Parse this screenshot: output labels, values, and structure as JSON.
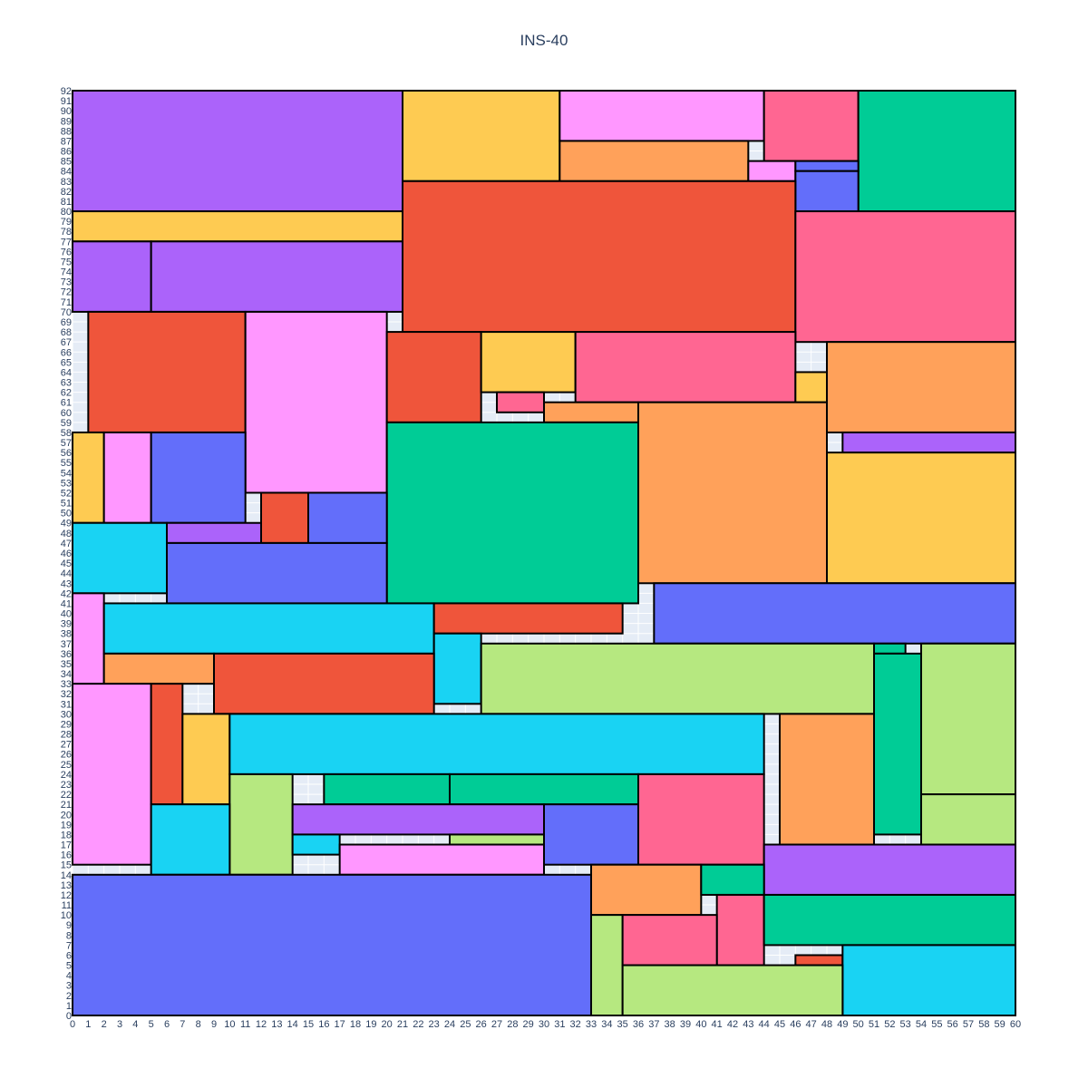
{
  "chart_data": {
    "type": "rectangle-packing",
    "title": "INS-40",
    "xlabel": "",
    "ylabel": "",
    "xlim": [
      0,
      60
    ],
    "ylim": [
      0,
      92
    ],
    "x_ticks": [
      0,
      1,
      2,
      3,
      4,
      5,
      6,
      7,
      8,
      9,
      10,
      11,
      12,
      13,
      14,
      15,
      16,
      17,
      18,
      19,
      20,
      21,
      22,
      23,
      24,
      25,
      26,
      27,
      28,
      29,
      30,
      31,
      32,
      33,
      34,
      35,
      36,
      37,
      38,
      39,
      40,
      41,
      42,
      43,
      44,
      45,
      46,
      47,
      48,
      49,
      50,
      51,
      52,
      53,
      54,
      55,
      56,
      57,
      58,
      59,
      60
    ],
    "y_ticks": [
      0,
      1,
      2,
      3,
      4,
      5,
      6,
      7,
      8,
      9,
      10,
      11,
      12,
      13,
      14,
      15,
      16,
      17,
      18,
      19,
      20,
      21,
      22,
      23,
      24,
      25,
      26,
      27,
      28,
      29,
      30,
      31,
      32,
      33,
      34,
      35,
      36,
      37,
      38,
      39,
      40,
      41,
      42,
      43,
      44,
      45,
      46,
      47,
      48,
      49,
      50,
      51,
      52,
      53,
      54,
      55,
      56,
      57,
      58,
      59,
      60,
      61,
      62,
      63,
      64,
      65,
      66,
      67,
      68,
      69,
      70,
      71,
      72,
      73,
      74,
      75,
      76,
      77,
      78,
      79,
      80,
      81,
      82,
      83,
      84,
      85,
      86,
      87,
      88,
      89,
      90,
      91,
      92
    ],
    "grid": true,
    "background": "#e5ecf6",
    "colors": {
      "purple": "#ab63fa",
      "yellow": "#fecb52",
      "pink": "#ff97ff",
      "orange": "#ffa15a",
      "rose": "#ff6692",
      "green": "#00cc96",
      "blue": "#636efa",
      "red": "#ef553b",
      "cyan": "#19d3f3",
      "lime": "#b6e880"
    },
    "rectangles": [
      {
        "x0": 0,
        "x1": 21,
        "y0": 80,
        "y1": 92,
        "color": "#ab63fa"
      },
      {
        "x0": 21,
        "x1": 31,
        "y0": 83,
        "y1": 92,
        "color": "#fecb52"
      },
      {
        "x0": 31,
        "x1": 44,
        "y0": 87,
        "y1": 92,
        "color": "#ff97ff"
      },
      {
        "x0": 44,
        "x1": 50,
        "y0": 85,
        "y1": 92,
        "color": "#ff6692"
      },
      {
        "x0": 50,
        "x1": 60,
        "y0": 80,
        "y1": 92,
        "color": "#00cc96"
      },
      {
        "x0": 31,
        "x1": 43,
        "y0": 83,
        "y1": 87,
        "color": "#ffa15a"
      },
      {
        "x0": 43,
        "x1": 46,
        "y0": 83,
        "y1": 85,
        "color": "#ff97ff"
      },
      {
        "x0": 46,
        "x1": 50,
        "y0": 84,
        "y1": 85,
        "color": "#636efa"
      },
      {
        "x0": 46,
        "x1": 50,
        "y0": 80,
        "y1": 84,
        "color": "#636efa"
      },
      {
        "x0": 0,
        "x1": 21,
        "y0": 77,
        "y1": 80,
        "color": "#fecb52"
      },
      {
        "x0": 21,
        "x1": 46,
        "y0": 68,
        "y1": 83,
        "color": "#ef553b"
      },
      {
        "x0": 46,
        "x1": 60,
        "y0": 67,
        "y1": 80,
        "color": "#ff6692"
      },
      {
        "x0": 0,
        "x1": 5,
        "y0": 70,
        "y1": 77,
        "color": "#ab63fa"
      },
      {
        "x0": 5,
        "x1": 21,
        "y0": 70,
        "y1": 77,
        "color": "#ab63fa"
      },
      {
        "x0": 1,
        "x1": 11,
        "y0": 58,
        "y1": 70,
        "color": "#ef553b"
      },
      {
        "x0": 11,
        "x1": 20,
        "y0": 52,
        "y1": 70,
        "color": "#ff97ff"
      },
      {
        "x0": 20,
        "x1": 26,
        "y0": 59,
        "y1": 68,
        "color": "#ef553b"
      },
      {
        "x0": 26,
        "x1": 32,
        "y0": 62,
        "y1": 68,
        "color": "#fecb52"
      },
      {
        "x0": 32,
        "x1": 46,
        "y0": 61,
        "y1": 68,
        "color": "#ff6692"
      },
      {
        "x0": 27,
        "x1": 30,
        "y0": 60,
        "y1": 62,
        "color": "#ff6692"
      },
      {
        "x0": 46,
        "x1": 48,
        "y0": 61,
        "y1": 64,
        "color": "#fecb52"
      },
      {
        "x0": 48,
        "x1": 60,
        "y0": 58,
        "y1": 67,
        "color": "#ffa15a"
      },
      {
        "x0": 30,
        "x1": 36,
        "y0": 59,
        "y1": 61,
        "color": "#ffa15a"
      },
      {
        "x0": 20,
        "x1": 36,
        "y0": 41,
        "y1": 59,
        "color": "#00cc96"
      },
      {
        "x0": 36,
        "x1": 48,
        "y0": 43,
        "y1": 61,
        "color": "#ffa15a"
      },
      {
        "x0": 49,
        "x1": 60,
        "y0": 56,
        "y1": 58,
        "color": "#ab63fa"
      },
      {
        "x0": 48,
        "x1": 60,
        "y0": 43,
        "y1": 56,
        "color": "#fecb52"
      },
      {
        "x0": 0,
        "x1": 2,
        "y0": 49,
        "y1": 58,
        "color": "#fecb52"
      },
      {
        "x0": 2,
        "x1": 5,
        "y0": 49,
        "y1": 58,
        "color": "#ff97ff"
      },
      {
        "x0": 5,
        "x1": 11,
        "y0": 49,
        "y1": 58,
        "color": "#636efa"
      },
      {
        "x0": 12,
        "x1": 15,
        "y0": 47,
        "y1": 52,
        "color": "#ef553b"
      },
      {
        "x0": 15,
        "x1": 20,
        "y0": 47,
        "y1": 52,
        "color": "#636efa"
      },
      {
        "x0": 0,
        "x1": 6,
        "y0": 42,
        "y1": 49,
        "color": "#19d3f3"
      },
      {
        "x0": 6,
        "x1": 12,
        "y0": 47,
        "y1": 49,
        "color": "#ab63fa"
      },
      {
        "x0": 6,
        "x1": 20,
        "y0": 41,
        "y1": 47,
        "color": "#636efa"
      },
      {
        "x0": 37,
        "x1": 60,
        "y0": 37,
        "y1": 43,
        "color": "#636efa"
      },
      {
        "x0": 0,
        "x1": 2,
        "y0": 33,
        "y1": 42,
        "color": "#ff97ff"
      },
      {
        "x0": 2,
        "x1": 23,
        "y0": 36,
        "y1": 41,
        "color": "#19d3f3"
      },
      {
        "x0": 23,
        "x1": 35,
        "y0": 38,
        "y1": 41,
        "color": "#ef553b"
      },
      {
        "x0": 23,
        "x1": 26,
        "y0": 31,
        "y1": 38,
        "color": "#19d3f3"
      },
      {
        "x0": 26,
        "x1": 51,
        "y0": 30,
        "y1": 37,
        "color": "#b6e880"
      },
      {
        "x0": 51,
        "x1": 53,
        "y0": 36,
        "y1": 37,
        "color": "#00cc96"
      },
      {
        "x0": 54,
        "x1": 60,
        "y0": 22,
        "y1": 37,
        "color": "#b6e880"
      },
      {
        "x0": 2,
        "x1": 9,
        "y0": 33,
        "y1": 36,
        "color": "#ffa15a"
      },
      {
        "x0": 9,
        "x1": 23,
        "y0": 30,
        "y1": 36,
        "color": "#ef553b"
      },
      {
        "x0": 51,
        "x1": 54,
        "y0": 18,
        "y1": 36,
        "color": "#00cc96"
      },
      {
        "x0": 0,
        "x1": 5,
        "y0": 15,
        "y1": 33,
        "color": "#ff97ff"
      },
      {
        "x0": 5,
        "x1": 7,
        "y0": 21,
        "y1": 33,
        "color": "#ef553b"
      },
      {
        "x0": 7,
        "x1": 10,
        "y0": 21,
        "y1": 30,
        "color": "#fecb52"
      },
      {
        "x0": 10,
        "x1": 44,
        "y0": 24,
        "y1": 30,
        "color": "#19d3f3"
      },
      {
        "x0": 45,
        "x1": 51,
        "y0": 17,
        "y1": 30,
        "color": "#ffa15a"
      },
      {
        "x0": 10,
        "x1": 14,
        "y0": 14,
        "y1": 24,
        "color": "#b6e880"
      },
      {
        "x0": 16,
        "x1": 24,
        "y0": 21,
        "y1": 24,
        "color": "#00cc96"
      },
      {
        "x0": 24,
        "x1": 36,
        "y0": 21,
        "y1": 24,
        "color": "#00cc96"
      },
      {
        "x0": 36,
        "x1": 44,
        "y0": 15,
        "y1": 24,
        "color": "#ff6692"
      },
      {
        "x0": 54,
        "x1": 60,
        "y0": 17,
        "y1": 22,
        "color": "#b6e880"
      },
      {
        "x0": 5,
        "x1": 10,
        "y0": 14,
        "y1": 21,
        "color": "#19d3f3"
      },
      {
        "x0": 14,
        "x1": 30,
        "y0": 18,
        "y1": 21,
        "color": "#ab63fa"
      },
      {
        "x0": 30,
        "x1": 36,
        "y0": 15,
        "y1": 21,
        "color": "#636efa"
      },
      {
        "x0": 14,
        "x1": 17,
        "y0": 16,
        "y1": 18,
        "color": "#19d3f3"
      },
      {
        "x0": 24,
        "x1": 30,
        "y0": 17,
        "y1": 18,
        "color": "#b6e880"
      },
      {
        "x0": 17,
        "x1": 30,
        "y0": 14,
        "y1": 17,
        "color": "#ff97ff"
      },
      {
        "x0": 44,
        "x1": 60,
        "y0": 12,
        "y1": 17,
        "color": "#ab63fa"
      },
      {
        "x0": 0,
        "x1": 33,
        "y0": 0,
        "y1": 14,
        "color": "#636efa"
      },
      {
        "x0": 33,
        "x1": 40,
        "y0": 10,
        "y1": 15,
        "color": "#ffa15a"
      },
      {
        "x0": 40,
        "x1": 44,
        "y0": 12,
        "y1": 15,
        "color": "#00cc96"
      },
      {
        "x0": 41,
        "x1": 44,
        "y0": 5,
        "y1": 12,
        "color": "#ff6692"
      },
      {
        "x0": 44,
        "x1": 60,
        "y0": 7,
        "y1": 12,
        "color": "#00cc96"
      },
      {
        "x0": 33,
        "x1": 35,
        "y0": 0,
        "y1": 10,
        "color": "#b6e880"
      },
      {
        "x0": 35,
        "x1": 41,
        "y0": 5,
        "y1": 10,
        "color": "#ff6692"
      },
      {
        "x0": 46,
        "x1": 49,
        "y0": 5,
        "y1": 6,
        "color": "#ef553b"
      },
      {
        "x0": 49,
        "x1": 60,
        "y0": 0,
        "y1": 7,
        "color": "#19d3f3"
      },
      {
        "x0": 35,
        "x1": 49,
        "y0": 0,
        "y1": 5,
        "color": "#b6e880"
      }
    ]
  }
}
